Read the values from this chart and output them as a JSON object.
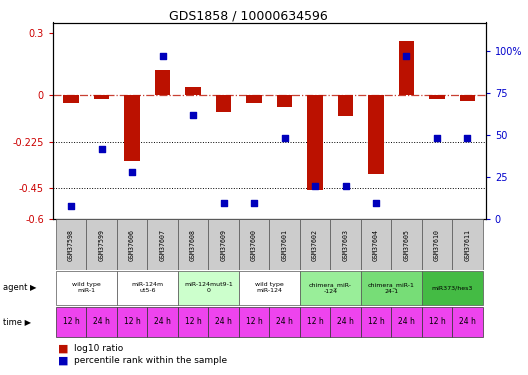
{
  "title": "GDS1858 / 10000634596",
  "samples": [
    "GSM37598",
    "GSM37599",
    "GSM37606",
    "GSM37607",
    "GSM37608",
    "GSM37609",
    "GSM37600",
    "GSM37601",
    "GSM37602",
    "GSM37603",
    "GSM37604",
    "GSM37605",
    "GSM37610",
    "GSM37611"
  ],
  "log10_ratio": [
    -0.04,
    -0.02,
    -0.32,
    0.12,
    0.04,
    -0.08,
    -0.04,
    -0.06,
    -0.46,
    -0.1,
    -0.38,
    0.26,
    -0.02,
    -0.03
  ],
  "percentile": [
    8,
    42,
    28,
    97,
    62,
    10,
    10,
    48,
    20,
    20,
    10,
    97,
    48,
    48
  ],
  "ylim_left": [
    -0.6,
    0.35
  ],
  "ylim_right": [
    0,
    116.67
  ],
  "yticks_left": [
    0.3,
    0.0,
    -0.225,
    -0.45,
    -0.6
  ],
  "yticks_left_labels": [
    "0.3",
    "0",
    "-0.225",
    "-0.45",
    "-0.6"
  ],
  "yticks_right": [
    100,
    75,
    50,
    25,
    0
  ],
  "yticks_right_labels": [
    "100%",
    "75",
    "50",
    "25",
    "0"
  ],
  "agent_groups": [
    {
      "label": "wild type\nmiR-1",
      "cols": [
        0,
        1
      ],
      "color": "#ffffff"
    },
    {
      "label": "miR-124m\nut5-6",
      "cols": [
        2,
        3
      ],
      "color": "#ffffff"
    },
    {
      "label": "miR-124mut9-1\n0",
      "cols": [
        4,
        5
      ],
      "color": "#ccffcc"
    },
    {
      "label": "wild type\nmiR-124",
      "cols": [
        6,
        7
      ],
      "color": "#ffffff"
    },
    {
      "label": "chimera_miR-\n-124",
      "cols": [
        8,
        9
      ],
      "color": "#99ee99"
    },
    {
      "label": "chimera_miR-1\n24-1",
      "cols": [
        10,
        11
      ],
      "color": "#77dd77"
    },
    {
      "label": "miR373/hes3",
      "cols": [
        12,
        13
      ],
      "color": "#44bb44"
    }
  ],
  "time_labels": [
    "12 h",
    "24 h",
    "12 h",
    "24 h",
    "12 h",
    "24 h",
    "12 h",
    "24 h",
    "12 h",
    "24 h",
    "12 h",
    "24 h",
    "12 h",
    "24 h"
  ],
  "time_color": "#ee44ee",
  "bar_color": "#bb1100",
  "dot_color": "#0000bb",
  "sample_bg": "#cccccc",
  "ylabel_left_color": "#cc0000",
  "ylabel_right_color": "#0000cc",
  "title_fontsize": 9,
  "tick_fontsize": 7,
  "bar_width": 0.5
}
